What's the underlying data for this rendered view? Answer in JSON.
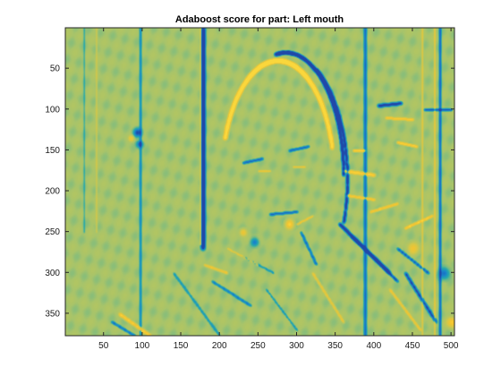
{
  "chart_data": {
    "type": "heatmap",
    "title": "Adaboost score for part: Left mouth",
    "xlabel": "",
    "ylabel": "",
    "xlim": [
      0.5,
      504.5
    ],
    "ylim": [
      0.5,
      377.5
    ],
    "y_direction": "reverse",
    "x_ticks": [
      50,
      100,
      150,
      200,
      250,
      300,
      350,
      400,
      450,
      500
    ],
    "y_ticks": [
      50,
      100,
      150,
      200,
      250,
      300,
      350
    ],
    "colormap": "parula",
    "colors": {
      "background": "#a8c46a",
      "high": "#f4c430",
      "low": "#1787c8",
      "very_low": "#2050a8",
      "axis": "#262626"
    },
    "features": [
      {
        "kind": "vline",
        "x": 178,
        "y0": 0,
        "y1": 270,
        "w": 7,
        "sign": -1
      },
      {
        "kind": "vline",
        "x": 175,
        "y0": 0,
        "y1": 265,
        "w": 3,
        "sign": 1
      },
      {
        "kind": "vline",
        "x": 97,
        "y0": 0,
        "y1": 377,
        "w": 4,
        "sign": -0.5
      },
      {
        "kind": "vline",
        "x": 388,
        "y0": 0,
        "y1": 377,
        "w": 5,
        "sign": -0.6
      },
      {
        "kind": "vline",
        "x": 485,
        "y0": 0,
        "y1": 377,
        "w": 4,
        "sign": -0.8
      },
      {
        "kind": "vline",
        "x": 478,
        "y0": 0,
        "y1": 377,
        "w": 3,
        "sign": 0.6
      },
      {
        "kind": "vline",
        "x": 462,
        "y0": 0,
        "y1": 377,
        "w": 3,
        "sign": 0.5
      },
      {
        "kind": "vline",
        "x": 24,
        "y0": 0,
        "y1": 250,
        "w": 3,
        "sign": -0.3
      },
      {
        "kind": "vline",
        "x": 40,
        "y0": 0,
        "y1": 250,
        "w": 3,
        "sign": 0.3
      },
      {
        "kind": "arc",
        "cx": 275,
        "cy": 185,
        "rx": 73,
        "ry": 145,
        "a0": 200,
        "a1": 345,
        "w": 6,
        "sign": 1
      },
      {
        "kind": "arc",
        "cx": 285,
        "cy": 180,
        "rx": 75,
        "ry": 150,
        "a0": 260,
        "a1": 360,
        "w": 5,
        "sign": -1.2
      },
      {
        "kind": "arc",
        "cx": 285,
        "cy": 185,
        "rx": 80,
        "ry": 155,
        "a0": 300,
        "a1": 380,
        "w": 5,
        "sign": -1
      },
      {
        "kind": "seg",
        "x0": 373,
        "y0": 150,
        "x1": 388,
        "y1": 150,
        "w": 4,
        "sign": 1
      },
      {
        "kind": "seg",
        "x0": 360,
        "y0": 175,
        "x1": 400,
        "y1": 180,
        "w": 5,
        "sign": 0.8
      },
      {
        "kind": "seg",
        "x0": 365,
        "y0": 205,
        "x1": 400,
        "y1": 210,
        "w": 4,
        "sign": 0.8
      },
      {
        "kind": "seg",
        "x0": 405,
        "y0": 95,
        "x1": 435,
        "y1": 92,
        "w": 5,
        "sign": -1
      },
      {
        "kind": "seg",
        "x0": 415,
        "y0": 110,
        "x1": 450,
        "y1": 112,
        "w": 4,
        "sign": 0.8
      },
      {
        "kind": "seg",
        "x0": 430,
        "y0": 140,
        "x1": 455,
        "y1": 145,
        "w": 4,
        "sign": 1
      },
      {
        "kind": "seg",
        "x0": 465,
        "y0": 100,
        "x1": 500,
        "y1": 100,
        "w": 4,
        "sign": -0.9
      },
      {
        "kind": "seg",
        "x0": 355,
        "y0": 240,
        "x1": 420,
        "y1": 300,
        "w": 5,
        "sign": -1.3
      },
      {
        "kind": "seg",
        "x0": 370,
        "y0": 255,
        "x1": 430,
        "y1": 310,
        "w": 4,
        "sign": -1
      },
      {
        "kind": "seg",
        "x0": 395,
        "y0": 225,
        "x1": 430,
        "y1": 215,
        "w": 4,
        "sign": 0.8
      },
      {
        "kind": "seg",
        "x0": 440,
        "y0": 245,
        "x1": 475,
        "y1": 230,
        "w": 4,
        "sign": 0.9
      },
      {
        "kind": "seg",
        "x0": 430,
        "y0": 270,
        "x1": 470,
        "y1": 300,
        "w": 4,
        "sign": -0.8
      },
      {
        "kind": "seg",
        "x0": 440,
        "y0": 300,
        "x1": 480,
        "y1": 360,
        "w": 5,
        "sign": -0.8
      },
      {
        "kind": "seg",
        "x0": 420,
        "y0": 320,
        "x1": 460,
        "y1": 370,
        "w": 4,
        "sign": 0.6
      },
      {
        "kind": "seg",
        "x0": 230,
        "y0": 165,
        "x1": 255,
        "y1": 160,
        "w": 4,
        "sign": -0.8
      },
      {
        "kind": "seg",
        "x0": 290,
        "y0": 150,
        "x1": 315,
        "y1": 145,
        "w": 4,
        "sign": -0.8
      },
      {
        "kind": "seg",
        "x0": 250,
        "y0": 175,
        "x1": 265,
        "y1": 175,
        "w": 3,
        "sign": 0.7
      },
      {
        "kind": "seg",
        "x0": 295,
        "y0": 170,
        "x1": 310,
        "y1": 170,
        "w": 3,
        "sign": 0.7
      },
      {
        "kind": "seg",
        "x0": 265,
        "y0": 228,
        "x1": 300,
        "y1": 225,
        "w": 4,
        "sign": -0.8
      },
      {
        "kind": "seg",
        "x0": 300,
        "y0": 240,
        "x1": 320,
        "y1": 230,
        "w": 3,
        "sign": 0.8
      },
      {
        "kind": "seg",
        "x0": 305,
        "y0": 250,
        "x1": 325,
        "y1": 290,
        "w": 4,
        "sign": -0.7
      },
      {
        "kind": "seg",
        "x0": 180,
        "y0": 290,
        "x1": 210,
        "y1": 300,
        "w": 4,
        "sign": 0.6
      },
      {
        "kind": "seg",
        "x0": 190,
        "y0": 310,
        "x1": 240,
        "y1": 340,
        "w": 4,
        "sign": -0.6
      },
      {
        "kind": "seg",
        "x0": 210,
        "y0": 270,
        "x1": 250,
        "y1": 290,
        "w": 3,
        "sign": 0.5
      },
      {
        "kind": "seg",
        "x0": 230,
        "y0": 280,
        "x1": 270,
        "y1": 300,
        "w": 3,
        "sign": -0.5
      },
      {
        "kind": "seg",
        "x0": 70,
        "y0": 350,
        "x1": 110,
        "y1": 377,
        "w": 5,
        "sign": 0.7
      },
      {
        "kind": "seg",
        "x0": 60,
        "y0": 360,
        "x1": 90,
        "y1": 377,
        "w": 4,
        "sign": -0.7
      },
      {
        "kind": "seg",
        "x0": 140,
        "y0": 300,
        "x1": 200,
        "y1": 377,
        "w": 4,
        "sign": -0.4
      },
      {
        "kind": "seg",
        "x0": 320,
        "y0": 300,
        "x1": 360,
        "y1": 360,
        "w": 4,
        "sign": 0.5
      },
      {
        "kind": "seg",
        "x0": 260,
        "y0": 320,
        "x1": 300,
        "y1": 370,
        "w": 3,
        "sign": -0.5
      },
      {
        "kind": "blob",
        "x": 93,
        "y": 128,
        "r": 6,
        "sign": -0.9
      },
      {
        "kind": "blob",
        "x": 96,
        "y": 142,
        "r": 5,
        "sign": -0.8
      },
      {
        "kind": "blob",
        "x": 85,
        "y": 135,
        "r": 4,
        "sign": 0.5
      },
      {
        "kind": "blob",
        "x": 290,
        "y": 240,
        "r": 6,
        "sign": 0.9
      },
      {
        "kind": "blob",
        "x": 450,
        "y": 270,
        "r": 8,
        "sign": 0.6
      },
      {
        "kind": "blob",
        "x": 490,
        "y": 300,
        "r": 8,
        "sign": -0.7
      },
      {
        "kind": "blob",
        "x": 500,
        "y": 360,
        "r": 7,
        "sign": 0.8
      },
      {
        "kind": "blob",
        "x": 245,
        "y": 262,
        "r": 6,
        "sign": -0.6
      },
      {
        "kind": "blob",
        "x": 230,
        "y": 250,
        "r": 5,
        "sign": 0.6
      }
    ]
  }
}
